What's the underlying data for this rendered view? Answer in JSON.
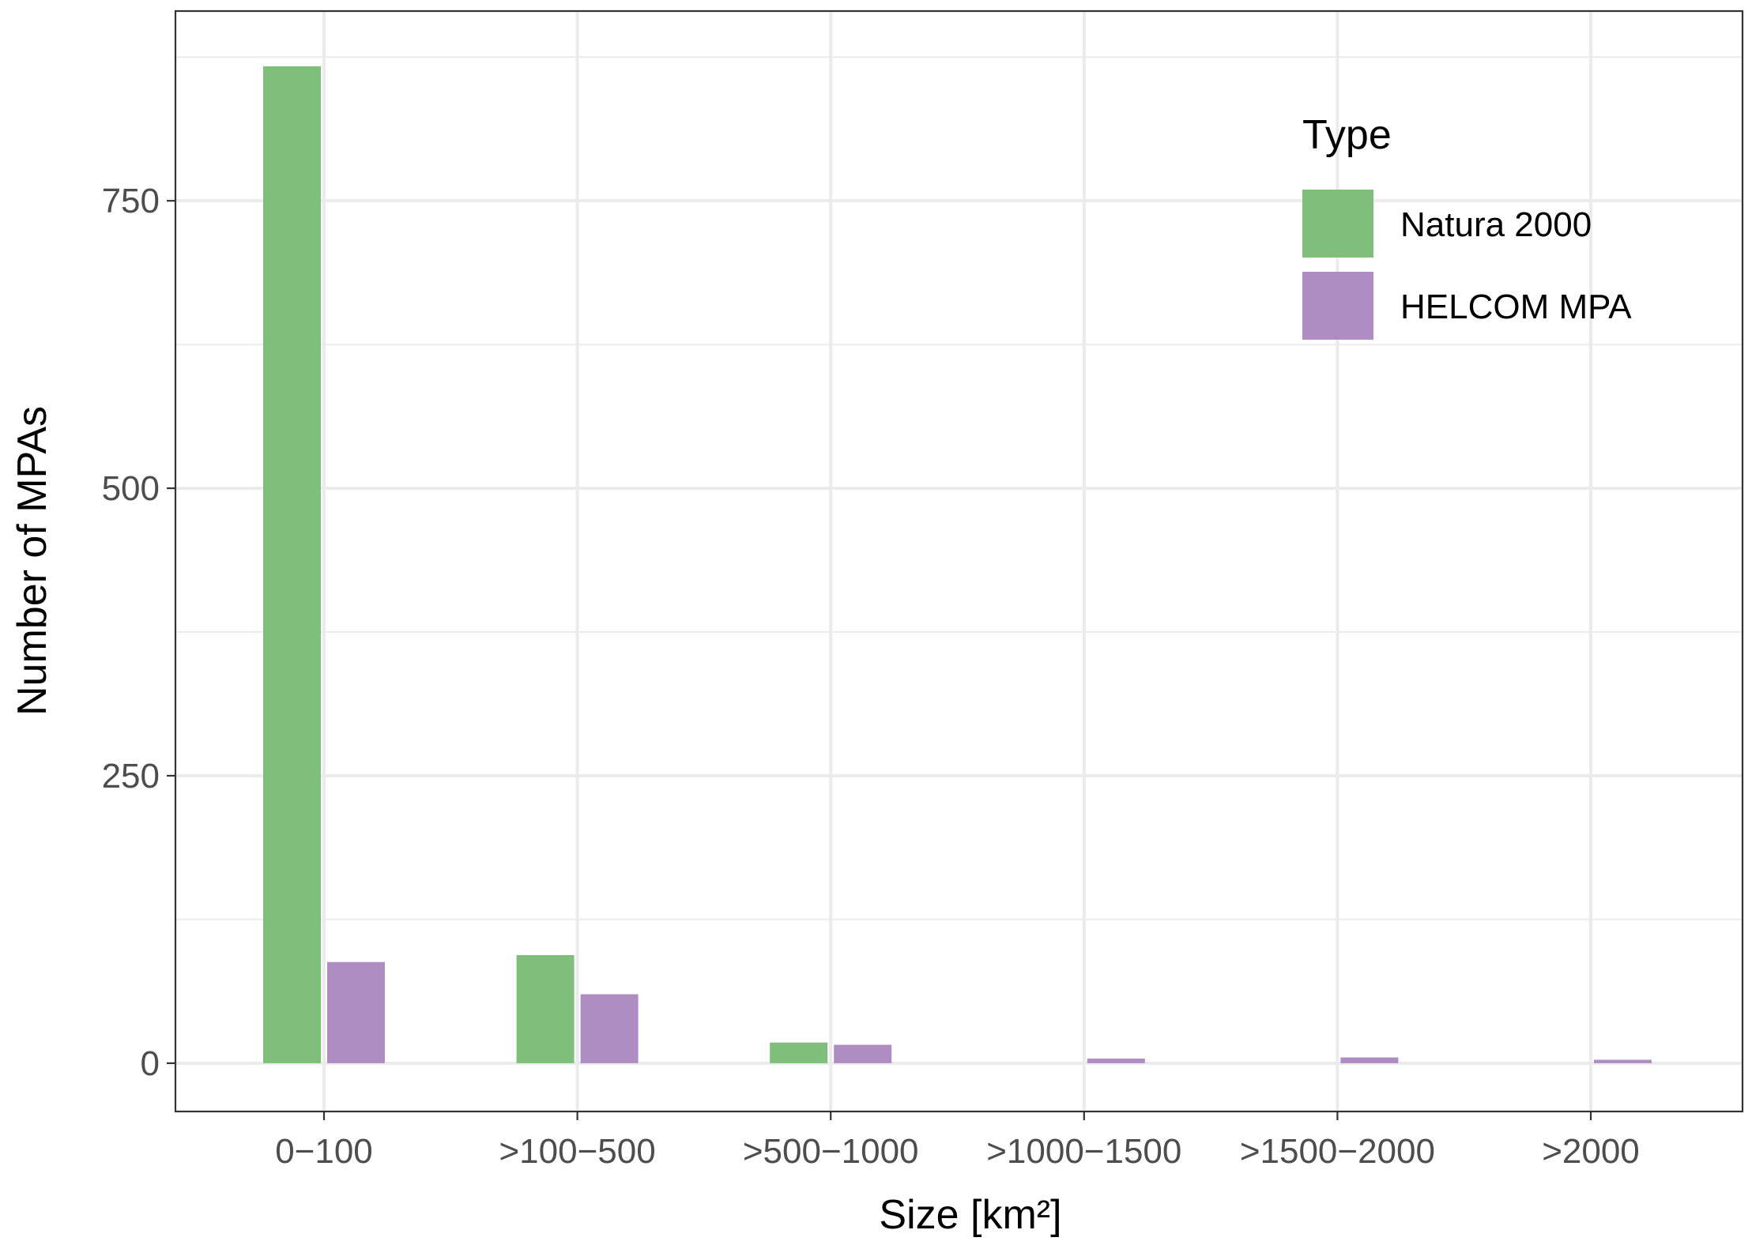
{
  "chart_data": {
    "type": "bar",
    "xlabel": "Size [km²]",
    "ylabel": "Number of MPAs",
    "categories": [
      "0−100",
      ">100−500",
      ">500−1000",
      ">1000−1500",
      ">1500−2000",
      ">2000"
    ],
    "series": [
      {
        "name": "Natura 2000",
        "color": "#7fbf7b",
        "values": [
          867,
          94,
          18,
          0,
          0,
          0
        ]
      },
      {
        "name": "HELCOM MPA",
        "color": "#af8dc3",
        "values": [
          88,
          60,
          16,
          4,
          5,
          3
        ]
      }
    ],
    "ylim": [
      -42,
      915
    ],
    "yticks": [
      0,
      250,
      500,
      750
    ],
    "ytick_labels": [
      "0",
      "250",
      "500",
      "750"
    ],
    "grid": true,
    "legend": {
      "title": "Type",
      "position": "top-right",
      "entries": [
        "Natura 2000",
        "HELCOM MPA"
      ]
    }
  }
}
